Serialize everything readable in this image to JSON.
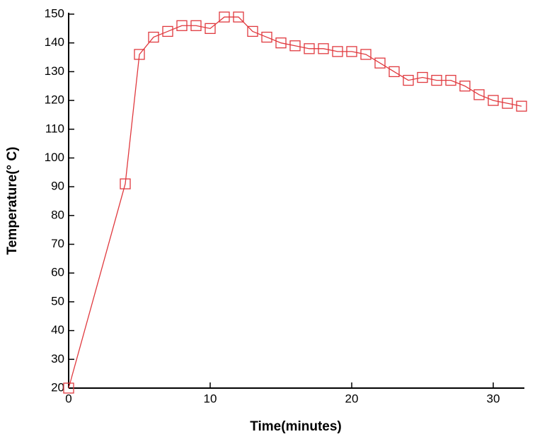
{
  "chart_data": {
    "type": "line",
    "x_label": "Time(minutes)",
    "y_label": "Temperature(° C)",
    "x": [
      0,
      4,
      5,
      6,
      7,
      8,
      9,
      10,
      11,
      12,
      13,
      14,
      15,
      16,
      17,
      18,
      19,
      20,
      21,
      22,
      23,
      24,
      25,
      26,
      27,
      28,
      29,
      30,
      31,
      32
    ],
    "series": [
      {
        "name": "Temperature",
        "color": "#e0393e",
        "values": [
          20,
          91,
          136,
          142,
          144,
          146,
          146,
          145,
          149,
          149,
          144,
          142,
          140,
          139,
          138,
          138,
          137,
          137,
          136,
          133,
          130,
          127,
          128,
          127,
          127,
          125,
          122,
          120,
          119,
          118
        ]
      }
    ],
    "xlim": [
      0,
      32.2
    ],
    "ylim": [
      20,
      150
    ],
    "xticks": [
      0,
      10,
      20,
      30
    ],
    "yticks": [
      20,
      30,
      40,
      50,
      60,
      70,
      80,
      90,
      100,
      110,
      120,
      130,
      140,
      150
    ],
    "markers": "square"
  }
}
